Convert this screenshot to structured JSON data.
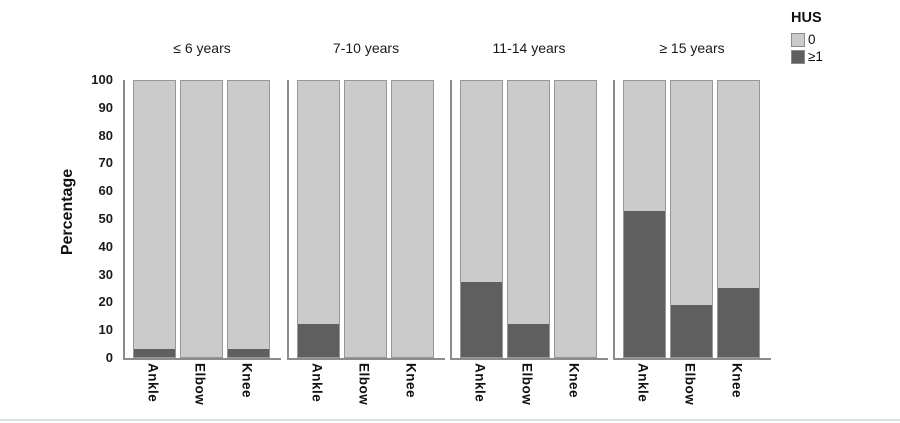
{
  "chart_data": {
    "type": "bar",
    "subtype": "stacked-percentage",
    "title": "",
    "ylabel": "Percentage",
    "ylim": [
      0,
      100
    ],
    "yticks": [
      0,
      10,
      20,
      30,
      40,
      50,
      60,
      70,
      80,
      90,
      100
    ],
    "grid": false,
    "legend": {
      "title": "HUS",
      "position": "top-right",
      "entries": [
        {
          "label": "0",
          "color": "#cbcbcb"
        },
        {
          "label": "≥1",
          "color": "#5f5f5f"
        }
      ]
    },
    "categories": [
      "Ankle",
      "Elbow",
      "Knee"
    ],
    "panels": [
      {
        "title": "≤ 6 years",
        "hus_ge1_pct": [
          3,
          0,
          3
        ],
        "hus_0_pct": [
          97,
          100,
          97
        ]
      },
      {
        "title": "7-10 years",
        "hus_ge1_pct": [
          12,
          0,
          0
        ],
        "hus_0_pct": [
          88,
          100,
          100
        ]
      },
      {
        "title": "11-14 years",
        "hus_ge1_pct": [
          27,
          12,
          0
        ],
        "hus_0_pct": [
          73,
          88,
          100
        ]
      },
      {
        "title": "≥ 15 years",
        "hus_ge1_pct": [
          53,
          19,
          25
        ],
        "hus_0_pct": [
          47,
          81,
          75
        ]
      }
    ]
  }
}
